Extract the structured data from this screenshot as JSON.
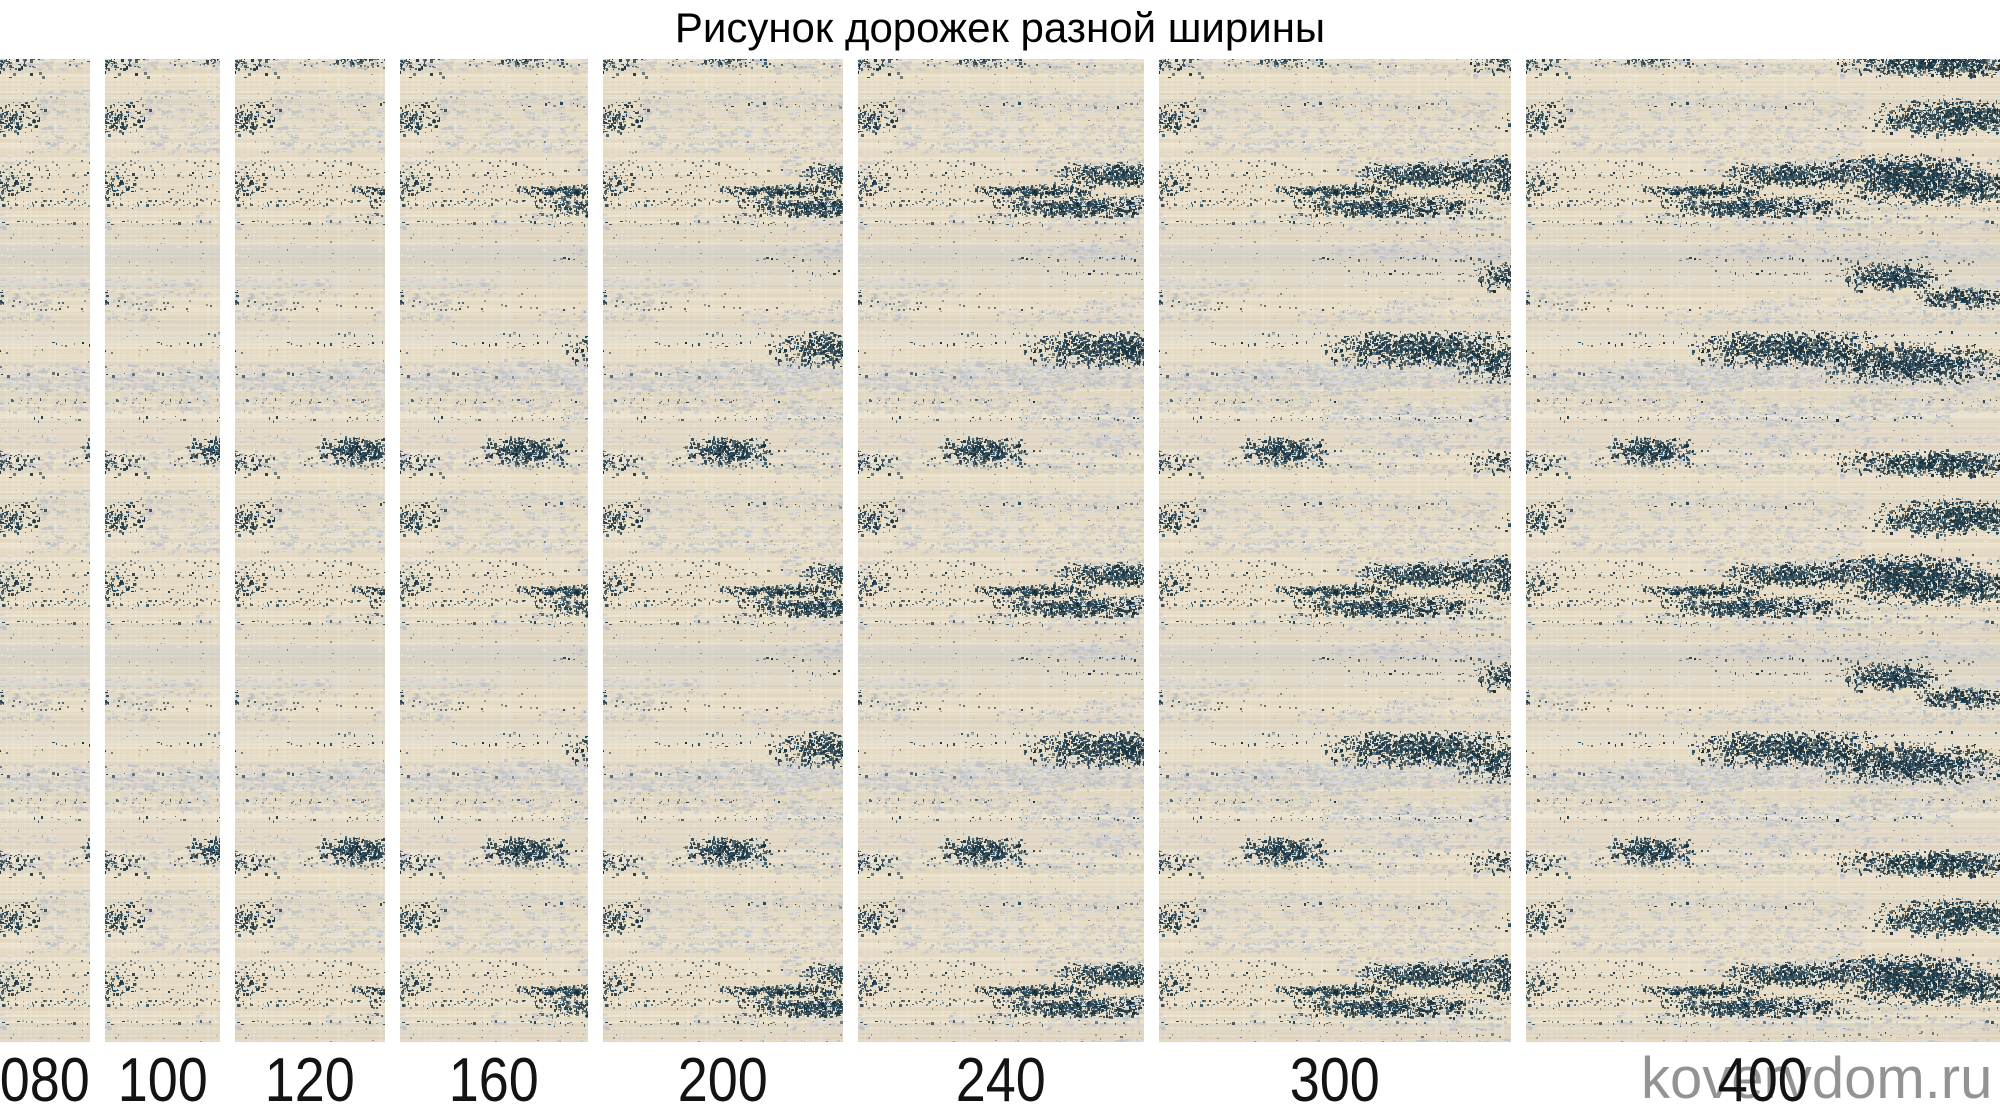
{
  "title": "Рисунок дорожек разной ширины",
  "watermark": "kovervdom.ru",
  "strips": [
    {
      "label": "080",
      "width_cm": 80
    },
    {
      "label": "100",
      "width_cm": 100
    },
    {
      "label": "120",
      "width_cm": 120
    },
    {
      "label": "160",
      "width_cm": 160
    },
    {
      "label": "200",
      "width_cm": 200
    },
    {
      "label": "240",
      "width_cm": 240
    },
    {
      "label": "300",
      "width_cm": 300
    },
    {
      "label": "400",
      "width_cm": 400
    }
  ],
  "texture": {
    "base": "#e7dcc6",
    "cream": "#f0ead9",
    "tan": "#d9cdb2",
    "gray": "#b9bec6",
    "lightgray": "#d5d8dc",
    "navy": "#1d3a4a",
    "navy_dark": "#142e3c",
    "navy_light": "#2c4c5c"
  }
}
